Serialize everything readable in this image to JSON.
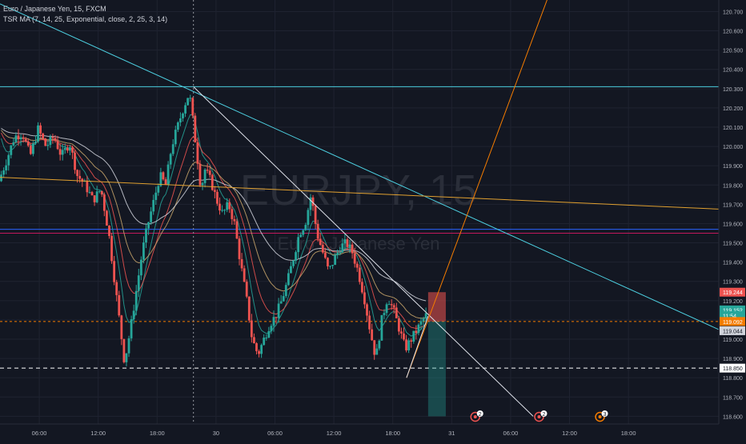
{
  "chart_data": {
    "type": "candlestick",
    "symbol_title": "Euro / Japanese Yen, 15, FXCM",
    "indicator_label": "TSR MA (7, 14, 25, Exponential, close, 2, 25, 3, 14)",
    "watermark": {
      "symbol": "EURJPY, 15",
      "name": "Euro / Japanese Yen"
    },
    "ylim": [
      118.56,
      120.76
    ],
    "xlim": [
      0,
      73.2
    ],
    "y_ticks": [
      "120.700",
      "120.600",
      "120.500",
      "120.400",
      "120.300",
      "120.200",
      "120.100",
      "120.000",
      "119.900",
      "119.800",
      "119.700",
      "119.600",
      "119.500",
      "119.400",
      "119.300",
      "119.200",
      "119.100",
      "119.000",
      "118.900",
      "118.800",
      "118.700",
      "118.600"
    ],
    "x_ticks": [
      {
        "label": "06:00",
        "x": 4
      },
      {
        "label": "12:00",
        "x": 10
      },
      {
        "label": "18:00",
        "x": 16
      },
      {
        "label": "30",
        "x": 22
      },
      {
        "label": "06:00",
        "x": 28
      },
      {
        "label": "12:00",
        "x": 34
      },
      {
        "label": "18:00",
        "x": 40
      },
      {
        "label": "31",
        "x": 46
      },
      {
        "label": "06:00",
        "x": 52
      },
      {
        "label": "12:00",
        "x": 58
      },
      {
        "label": "18:00",
        "x": 64
      }
    ],
    "price_labels": [
      {
        "text": "119.244",
        "value": 119.244,
        "color": "#ef5350",
        "text_color": "#ffffff"
      },
      {
        "text": "119.152",
        "value": 119.152,
        "color": "#26a69a",
        "text_color": "#ffffff"
      },
      {
        "text": "11:54",
        "value": 119.122,
        "color": "#26a69a",
        "text_color": "#ffffff"
      },
      {
        "text": "119.092",
        "value": 119.092,
        "color": "#f57c00",
        "text_color": "#ffffff"
      },
      {
        "text": "119.044",
        "value": 119.044,
        "color": "#d1d4dc",
        "text_color": "#131722"
      },
      {
        "text": "118.850",
        "value": 118.85,
        "color": "#ffffff",
        "text_color": "#131722"
      }
    ],
    "path": [
      [
        0,
        119.82
      ],
      [
        0.8,
        119.93
      ],
      [
        1.6,
        120.05
      ],
      [
        2.4,
        120.07
      ],
      [
        3.2,
        119.95
      ],
      [
        4,
        120.09
      ],
      [
        4.8,
        120.0
      ],
      [
        5.6,
        120.05
      ],
      [
        6.4,
        119.95
      ],
      [
        7.2,
        120.02
      ],
      [
        8,
        119.85
      ],
      [
        8.8,
        119.8
      ],
      [
        9.6,
        119.72
      ],
      [
        10.4,
        119.78
      ],
      [
        11.2,
        119.55
      ],
      [
        11.8,
        119.3
      ],
      [
        12.4,
        119.05
      ],
      [
        12.8,
        118.88
      ],
      [
        13.4,
        119.05
      ],
      [
        14,
        119.25
      ],
      [
        14.6,
        119.45
      ],
      [
        15.2,
        119.6
      ],
      [
        15.8,
        119.72
      ],
      [
        16.4,
        119.85
      ],
      [
        17,
        119.8
      ],
      [
        17.6,
        120.0
      ],
      [
        18.2,
        120.1
      ],
      [
        18.8,
        120.2
      ],
      [
        19.4,
        120.28
      ],
      [
        19.8,
        120.12
      ],
      [
        20.2,
        119.95
      ],
      [
        20.6,
        119.78
      ],
      [
        21,
        119.88
      ],
      [
        21.6,
        119.82
      ],
      [
        22.2,
        119.72
      ],
      [
        22.8,
        119.65
      ],
      [
        23.4,
        119.7
      ],
      [
        24,
        119.6
      ],
      [
        24.6,
        119.4
      ],
      [
        25.2,
        119.22
      ],
      [
        25.8,
        119.0
      ],
      [
        26.4,
        118.92
      ],
      [
        27,
        119.0
      ],
      [
        27.6,
        119.08
      ],
      [
        28.2,
        119.12
      ],
      [
        28.8,
        119.2
      ],
      [
        29.4,
        119.3
      ],
      [
        30,
        119.42
      ],
      [
        30.6,
        119.55
      ],
      [
        31.2,
        119.6
      ],
      [
        31.8,
        119.75
      ],
      [
        32.4,
        119.55
      ],
      [
        33,
        119.45
      ],
      [
        33.6,
        119.35
      ],
      [
        34.2,
        119.42
      ],
      [
        34.8,
        119.48
      ],
      [
        35.4,
        119.5
      ],
      [
        36,
        119.45
      ],
      [
        36.6,
        119.35
      ],
      [
        37.2,
        119.22
      ],
      [
        37.8,
        119.05
      ],
      [
        38.4,
        118.9
      ],
      [
        39,
        119.1
      ],
      [
        39.6,
        119.22
      ],
      [
        40.2,
        119.15
      ],
      [
        40.8,
        119.05
      ],
      [
        41.4,
        118.95
      ],
      [
        42,
        119.0
      ],
      [
        42.6,
        119.05
      ],
      [
        43.2,
        119.1
      ],
      [
        43.6,
        119.13
      ]
    ],
    "trend_lines": [
      {
        "name": "cyan-descending-line",
        "color": "#4dd0e1",
        "x1": 0,
        "y1": 120.74,
        "x2": 73.2,
        "y2": 119.05
      },
      {
        "name": "white-descending-line",
        "color": "#e0e3eb",
        "x1": 19.7,
        "y1": 120.31,
        "x2": 54.3,
        "y2": 118.6
      },
      {
        "name": "orange-horizontal-trend",
        "color": "#e0a030",
        "x1": 0,
        "y1": 119.84,
        "x2": 73.2,
        "y2": 119.675
      },
      {
        "name": "orange-rising-line",
        "color": "#f57c00",
        "x1": 41.4,
        "y1": 118.8,
        "x2": 56.0,
        "y2": 120.8
      },
      {
        "name": "white-rising-line",
        "color": "#e0e3eb",
        "x1": 41.4,
        "y1": 118.8,
        "x2": 43.6,
        "y2": 119.12
      }
    ],
    "horizontal_lines": [
      {
        "name": "cyan-resistance-line",
        "color": "#4dd0e1",
        "value": 120.31,
        "dash": ""
      },
      {
        "name": "blue-level-line",
        "color": "#2962ff",
        "value": 119.57,
        "dash": ""
      },
      {
        "name": "red-level-line",
        "color": "#c2185b",
        "value": 119.55,
        "dash": ""
      },
      {
        "name": "current-price-line",
        "color": "#f57c00",
        "value": 119.092,
        "dash": "3,3"
      },
      {
        "name": "support-dashed-line",
        "color": "#ffffff",
        "value": 118.85,
        "dash": "5,4"
      }
    ],
    "position_box": {
      "x1": 43.6,
      "x2": 45.4,
      "entry": 119.092,
      "stop": 119.244,
      "target": 118.6
    },
    "crosshair_x": 19.7,
    "event_markers": [
      {
        "x": 48.4,
        "label": "2",
        "color": "#ef5350"
      },
      {
        "x": 54.9,
        "label": "2",
        "color": "#ef5350"
      },
      {
        "x": 61.1,
        "label": "3",
        "color": "#f57c00"
      }
    ],
    "colors": {
      "background": "#131722",
      "grid": "#1f2330",
      "up": "#26a69a",
      "down": "#ef5350",
      "axis_text": "#b2b5be"
    }
  }
}
